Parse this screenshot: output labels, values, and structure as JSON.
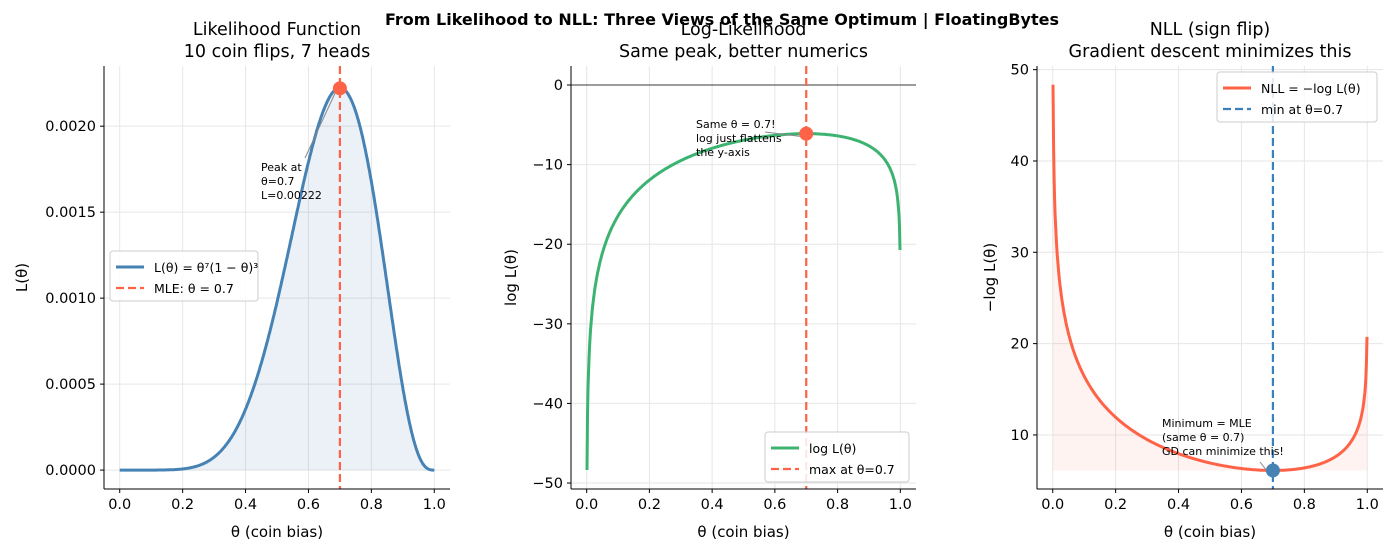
{
  "suptitle": "From Likelihood to NLL: Three Views of the Same Optimum  |  FloatingBytes",
  "model": {
    "flips": 10,
    "heads": 7,
    "mle": 0.7
  },
  "colors": {
    "likelihood": "#4682b4",
    "loglik": "#3cb371",
    "nll": "#ff6347",
    "mle_line": "#ff6347",
    "min_line": "#3a7fc0",
    "grid": "#e6e6e6"
  },
  "chart_data": [
    {
      "type": "line",
      "title": [
        "Likelihood Function",
        "10 coin flips, 7 heads"
      ],
      "xlabel": "θ  (coin bias)",
      "ylabel": "L(θ)",
      "xlim": [
        -0.05,
        1.05
      ],
      "ylim": [
        -0.00011,
        0.00235
      ],
      "grid": true,
      "x_ticks": [
        0.0,
        0.2,
        0.4,
        0.6,
        0.8,
        1.0
      ],
      "x_tick_labels": [
        "0.0",
        "0.2",
        "0.4",
        "0.6",
        "0.8",
        "1.0"
      ],
      "y_ticks": [
        0,
        0.0005,
        0.001,
        0.0015,
        0.002
      ],
      "y_tick_labels": [
        "0.0000",
        "0.0005",
        "0.0010",
        "0.0015",
        "0.0020"
      ],
      "x": [
        0.0,
        0.1,
        0.2,
        0.3,
        0.4,
        0.5,
        0.6,
        0.7,
        0.8,
        0.9,
        1.0
      ],
      "series": [
        {
          "name": "L(θ) = θ⁷(1 − θ)³",
          "values": [
            0,
            7e-08,
            6.55e-06,
            7.5e-05,
            0.000354,
            0.000977,
            0.00179,
            0.00222,
            0.00168,
            0.000478,
            0
          ]
        }
      ],
      "vline": {
        "x": 0.7,
        "name": "MLE: θ = 0.7"
      },
      "marker": {
        "x": 0.7,
        "y": 0.00222
      },
      "annotation": [
        "Peak at",
        "θ=0.7",
        "L=0.00222"
      ],
      "legend_position": "center-left",
      "fill_under": true
    },
    {
      "type": "line",
      "title": [
        "Log-Likelihood",
        "Same peak, better numerics"
      ],
      "xlabel": "θ  (coin bias)",
      "ylabel": "log L(θ)",
      "xlim": [
        -0.05,
        1.05
      ],
      "ylim": [
        -50.75,
        2.39
      ],
      "grid": true,
      "x_ticks": [
        0.0,
        0.2,
        0.4,
        0.6,
        0.8,
        1.0
      ],
      "x_tick_labels": [
        "0.0",
        "0.2",
        "0.4",
        "0.6",
        "0.8",
        "1.0"
      ],
      "y_ticks": [
        0,
        -10,
        -20,
        -30,
        -40,
        -50
      ],
      "y_tick_labels": [
        "0",
        "−10",
        "−20",
        "−30",
        "−40",
        "−50"
      ],
      "x": [
        0.001,
        0.1,
        0.2,
        0.3,
        0.4,
        0.5,
        0.6,
        0.7,
        0.8,
        0.9,
        0.999
      ],
      "series": [
        {
          "name": "log L(θ)",
          "values": [
            -48.36,
            -16.43,
            -11.94,
            -9.5,
            -7.95,
            -6.93,
            -6.33,
            -6.11,
            -6.39,
            -7.64,
            -20.73
          ]
        }
      ],
      "hline": 0,
      "vline": {
        "x": 0.7,
        "name": "max at θ=0.7"
      },
      "marker": {
        "x": 0.7,
        "y": -6.11
      },
      "annotation": [
        "Same θ = 0.7!",
        "log just flattens",
        "the y-axis"
      ],
      "legend_position": "lower-right"
    },
    {
      "type": "line",
      "title": [
        "NLL (sign flip)",
        "Gradient descent minimizes this"
      ],
      "xlabel": "θ  (coin bias)",
      "ylabel": "−log L(θ)",
      "xlim": [
        -0.05,
        1.05
      ],
      "ylim": [
        4.08,
        50.4
      ],
      "grid": true,
      "x_ticks": [
        0.0,
        0.2,
        0.4,
        0.6,
        0.8,
        1.0
      ],
      "x_tick_labels": [
        "0.0",
        "0.2",
        "0.4",
        "0.6",
        "0.8",
        "1.0"
      ],
      "y_ticks": [
        10,
        20,
        30,
        40,
        50
      ],
      "y_tick_labels": [
        "10",
        "20",
        "30",
        "40",
        "50"
      ],
      "x": [
        0.001,
        0.1,
        0.2,
        0.3,
        0.4,
        0.5,
        0.6,
        0.7,
        0.8,
        0.9,
        0.999
      ],
      "series": [
        {
          "name": "NLL = −log L(θ)",
          "values": [
            48.36,
            16.43,
            11.94,
            9.5,
            7.95,
            6.93,
            6.33,
            6.11,
            6.39,
            7.64,
            20.73
          ]
        }
      ],
      "vline": {
        "x": 0.7,
        "name": "min at θ=0.7"
      },
      "marker": {
        "x": 0.7,
        "y": 6.11
      },
      "annotation": [
        "Minimum = MLE",
        "(same θ = 0.7)",
        "GD can minimize this!"
      ],
      "legend_position": "upper-right",
      "fill_to_min": true
    }
  ]
}
